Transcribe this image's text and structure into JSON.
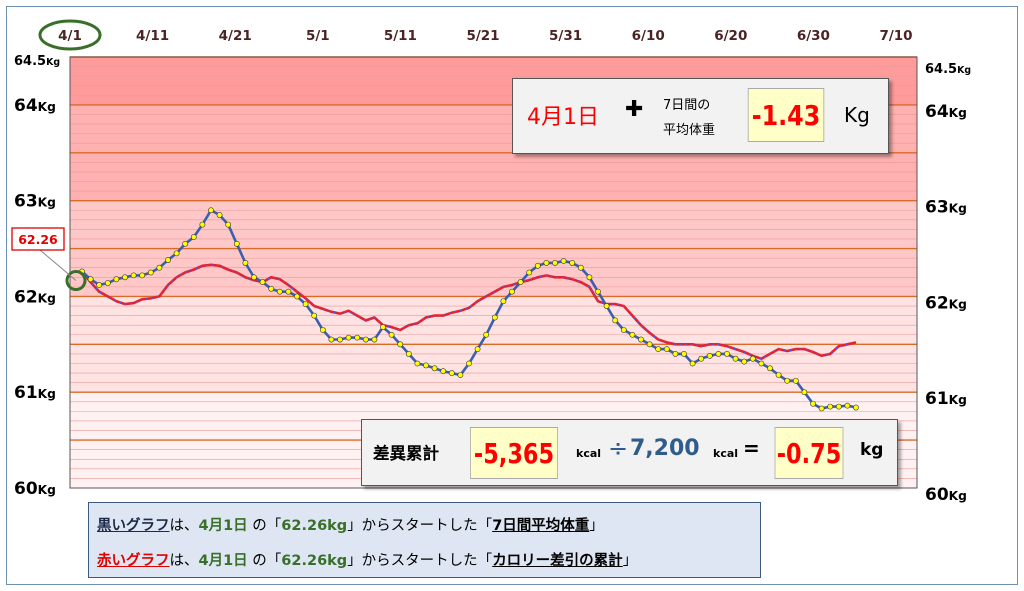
{
  "chart_data": {
    "type": "line",
    "x_tick_labels": [
      "4/1",
      "4/11",
      "4/21",
      "5/1",
      "5/11",
      "5/21",
      "5/31",
      "6/10",
      "6/20",
      "6/30",
      "7/10"
    ],
    "y_tick_labels": [
      "64.5Kg",
      "64Kg",
      "63Kg",
      "62Kg",
      "61Kg",
      "60Kg"
    ],
    "y_ticks": [
      64.5,
      64,
      63,
      62,
      61,
      60
    ],
    "ylim": [
      60,
      64.5
    ],
    "start_value_label": "62.26",
    "series": [
      {
        "color": "#3a5fb0",
        "marker_color": "#ffff00",
        "values": [
          62.26,
          62.18,
          62.12,
          62.14,
          62.18,
          62.2,
          62.22,
          62.22,
          62.25,
          62.3,
          62.38,
          62.45,
          62.55,
          62.62,
          62.75,
          62.9,
          62.85,
          62.75,
          62.55,
          62.35,
          62.2,
          62.15,
          62.08,
          62.05,
          62.05,
          62.0,
          61.92,
          61.8,
          61.65,
          61.55,
          61.55,
          61.57,
          61.57,
          61.55,
          61.55,
          61.68,
          61.6,
          61.5,
          61.4,
          61.3,
          61.28,
          61.25,
          61.22,
          61.2,
          61.18,
          61.3,
          61.45,
          61.6,
          61.78,
          61.95,
          62.05,
          62.15,
          62.25,
          62.32,
          62.35,
          62.35,
          62.37,
          62.35,
          62.3,
          62.2,
          62.05,
          61.9,
          61.75,
          61.65,
          61.6,
          61.55,
          61.5,
          61.45,
          61.45,
          61.4,
          61.4,
          61.3,
          61.35,
          61.38,
          61.4,
          61.4,
          61.35,
          61.32,
          61.35,
          61.3,
          61.25,
          61.18,
          61.12,
          61.12,
          61.0,
          60.88,
          60.83,
          60.85,
          60.85,
          60.86,
          60.84
        ]
      },
      {
        "color": "#e8202a",
        "dot_color": "#4060ff",
        "values": [
          62.26,
          62.15,
          62.05,
          62.0,
          61.95,
          61.92,
          61.93,
          61.97,
          61.98,
          62.0,
          62.12,
          62.2,
          62.25,
          62.28,
          62.32,
          62.33,
          62.32,
          62.28,
          62.25,
          62.2,
          62.17,
          62.15,
          62.2,
          62.18,
          62.12,
          62.05,
          61.98,
          61.9,
          61.87,
          61.84,
          61.82,
          61.85,
          61.8,
          61.75,
          61.78,
          61.7,
          61.68,
          61.65,
          61.7,
          61.72,
          61.78,
          61.8,
          61.8,
          61.83,
          61.85,
          61.88,
          61.95,
          62.0,
          62.05,
          62.1,
          62.12,
          62.15,
          62.17,
          62.2,
          62.22,
          62.2,
          62.2,
          62.18,
          62.15,
          62.1,
          61.95,
          61.92,
          61.92,
          61.9,
          61.8,
          61.7,
          61.62,
          61.55,
          61.52,
          61.5,
          61.5,
          61.5,
          61.48,
          61.5,
          61.5,
          61.48,
          61.45,
          61.42,
          61.38,
          61.35,
          61.4,
          61.45,
          61.43,
          61.45,
          61.45,
          61.42,
          61.38,
          61.4,
          61.48,
          61.5,
          61.52
        ]
      }
    ]
  },
  "info_top": {
    "date": "4月1日",
    "plus": "✚",
    "label_line1": "7日間の",
    "label_line2": "平均体重",
    "value": "-1.43",
    "unit": "Kg"
  },
  "info_bottom": {
    "label": "差異累計",
    "value": "-5,365",
    "unit1": "kcal",
    "divide": "÷",
    "divisor": "7,200",
    "unit2": "kcal",
    "equals": "=",
    "result": "-0.75",
    "unit3": "kg"
  },
  "legend": {
    "line1": {
      "name": "黒いグラフ",
      "p1": "は、",
      "date": "4月1日",
      "p2": " の「",
      "weight": "62.26kg",
      "p3": "」からスタートした「",
      "what": "7日間平均体重",
      "p4": "」"
    },
    "line2": {
      "name": "赤いグラフ",
      "p1": "は、",
      "date": "4月1日",
      "p2": " の「",
      "weight": "62.26kg",
      "p3": "」からスタートした「",
      "what": "カロリー差引の累計",
      "p4": "」"
    }
  },
  "colors": {
    "black_graph_label": "#1c2a48",
    "red_graph_label": "#e00000",
    "green_text": "#3a6f2a",
    "value_red": "#ff0000",
    "divisor_blue": "#2f5c8a"
  }
}
